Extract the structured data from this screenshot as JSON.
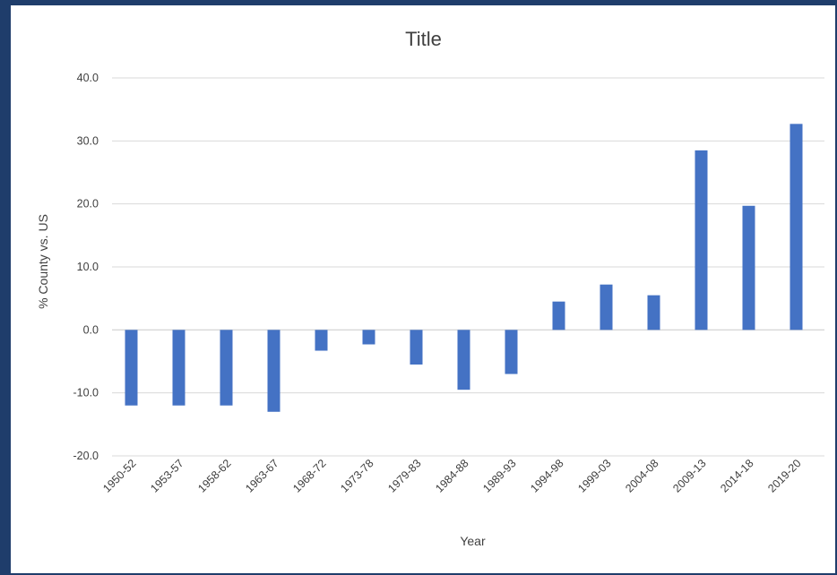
{
  "chart_data": {
    "type": "bar",
    "title": "Title",
    "xlabel": "Year",
    "ylabel": "% County vs. US",
    "ylim": [
      -20,
      40
    ],
    "yticks": [
      40,
      30,
      20,
      10,
      0,
      -10,
      -20
    ],
    "ytick_labels": [
      "40.0",
      "30.0",
      "20.0",
      "10.0",
      "0.0",
      "-10.0",
      "-20.0"
    ],
    "grid": true,
    "legend": "none",
    "bar_color": "#4472c4",
    "categories": [
      "1950-52",
      "1953-57",
      "1958-62",
      "1963-67",
      "1968-72",
      "1973-78",
      "1979-83",
      "1984-88",
      "1989-93",
      "1994-98",
      "1999-03",
      "2004-08",
      "2009-13",
      "2014-18",
      "2019-20"
    ],
    "values": [
      -12.0,
      -12.0,
      -12.0,
      -13.0,
      -3.3,
      -2.3,
      -5.5,
      -9.5,
      -7.0,
      4.5,
      7.2,
      5.5,
      28.5,
      19.7,
      32.7
    ]
  }
}
